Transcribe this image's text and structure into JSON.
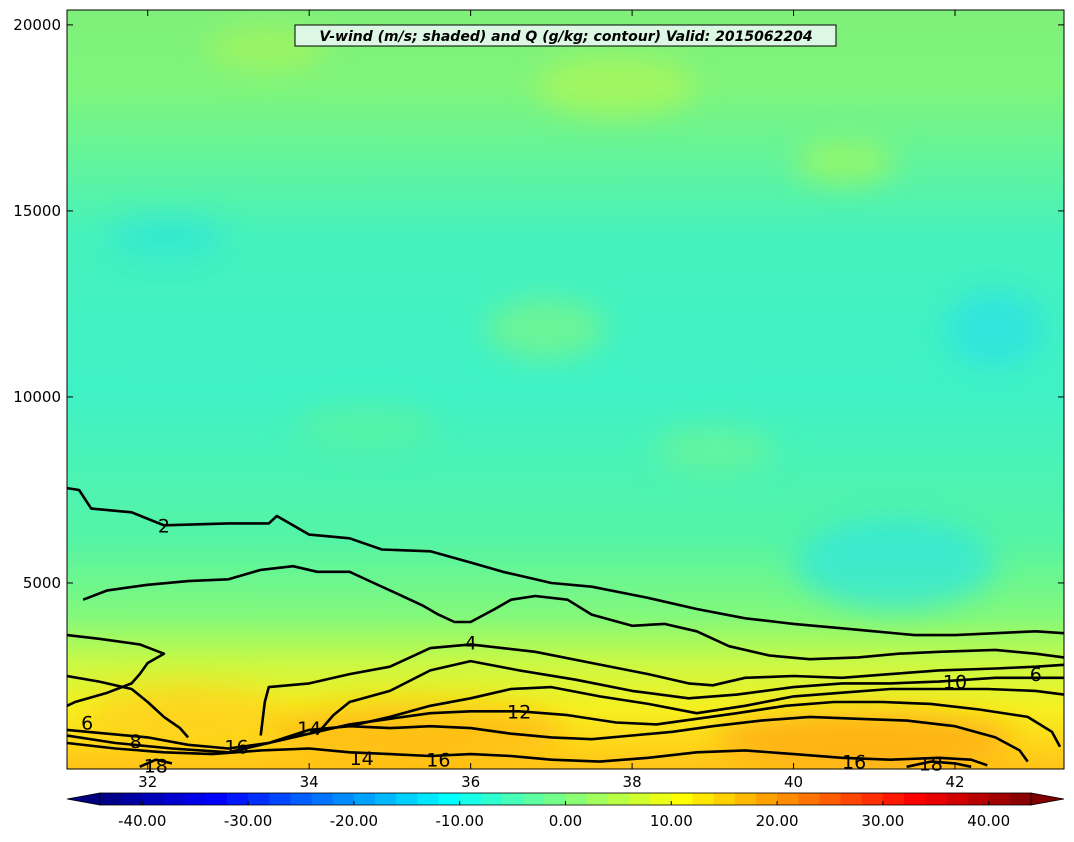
{
  "chart_data": {
    "type": "heatmap",
    "title": "V-wind (m/s; shaded) and Q (g/kg; contour) Valid: 2015062204",
    "xlabel": "",
    "ylabel": "",
    "xlim": [
      31.0,
      43.35
    ],
    "ylim": [
      0,
      20400
    ],
    "x_ticks": [
      32,
      34,
      36,
      38,
      40,
      42
    ],
    "x_tick_labels": [
      "32",
      "34",
      "36",
      "38",
      "40",
      "42"
    ],
    "y_ticks": [
      5000,
      10000,
      15000,
      20000
    ],
    "y_tick_labels": [
      "5000",
      "10000",
      "15000",
      "20000"
    ],
    "grid": false,
    "shaded_field": {
      "name": "V-wind (m/s)",
      "levels_min": -44,
      "levels_max": 44,
      "typical_range_aloft": [
        -8,
        6
      ],
      "typical_range_near_surface": [
        6,
        20
      ]
    },
    "colorbar": {
      "orientation": "horizontal",
      "position": "bottom",
      "range": [
        -44,
        44
      ],
      "ticks": [
        -40,
        -30,
        -20,
        -10,
        0,
        10,
        20,
        30,
        40
      ],
      "tick_labels": [
        "-40.00",
        "-30.00",
        "-20.00",
        "-10.00",
        "0.00",
        "10.00",
        "20.00",
        "30.00",
        "40.00"
      ]
    },
    "contours": {
      "field": "Q (g/kg)",
      "levels": [
        2,
        4,
        6,
        8,
        10,
        12,
        14,
        16,
        18
      ],
      "labels": [
        {
          "text": "2",
          "x": 32.2,
          "y": 6550
        },
        {
          "text": "4",
          "x": 36.0,
          "y": 3400
        },
        {
          "text": "6",
          "x": 43.0,
          "y": 2550
        },
        {
          "text": "10",
          "x": 42.0,
          "y": 2350
        },
        {
          "text": "12",
          "x": 36.6,
          "y": 1550
        },
        {
          "text": "14",
          "x": 34.0,
          "y": 1100
        },
        {
          "text": "6",
          "x": 31.25,
          "y": 1250
        },
        {
          "text": "8",
          "x": 31.85,
          "y": 750
        },
        {
          "text": "16",
          "x": 33.1,
          "y": 600
        },
        {
          "text": "14",
          "x": 34.65,
          "y": 300
        },
        {
          "text": "16",
          "x": 35.6,
          "y": 250
        },
        {
          "text": "16",
          "x": 40.75,
          "y": 200
        },
        {
          "text": "18",
          "x": 41.7,
          "y": 150
        },
        {
          "text": "18",
          "x": 32.1,
          "y": 100
        }
      ],
      "lines": [
        {
          "level": 2,
          "points": [
            [
              31.0,
              7550
            ],
            [
              31.15,
              7500
            ],
            [
              31.3,
              7000
            ],
            [
              31.8,
              6900
            ],
            [
              32.2,
              6550
            ],
            [
              33.0,
              6600
            ],
            [
              33.5,
              6600
            ],
            [
              33.6,
              6800
            ],
            [
              34.0,
              6300
            ],
            [
              34.5,
              6200
            ],
            [
              34.9,
              5900
            ],
            [
              35.5,
              5850
            ],
            [
              36.0,
              5550
            ],
            [
              36.4,
              5300
            ],
            [
              36.6,
              5200
            ],
            [
              37.0,
              5000
            ],
            [
              37.5,
              4900
            ],
            [
              38.2,
              4600
            ],
            [
              38.8,
              4300
            ],
            [
              39.4,
              4050
            ],
            [
              40.0,
              3900
            ],
            [
              40.5,
              3800
            ],
            [
              41.0,
              3700
            ],
            [
              41.5,
              3600
            ],
            [
              42.0,
              3600
            ],
            [
              42.5,
              3650
            ],
            [
              43.0,
              3700
            ],
            [
              43.35,
              3650
            ]
          ]
        },
        {
          "level": 4,
          "points": [
            [
              31.2,
              4550
            ],
            [
              31.5,
              4800
            ],
            [
              32.0,
              4950
            ],
            [
              32.5,
              5050
            ],
            [
              33.0,
              5100
            ],
            [
              33.4,
              5350
            ],
            [
              33.8,
              5450
            ],
            [
              34.1,
              5300
            ],
            [
              34.5,
              5300
            ],
            [
              34.8,
              5000
            ],
            [
              35.1,
              4700
            ],
            [
              35.4,
              4400
            ],
            [
              35.6,
              4150
            ],
            [
              35.8,
              3950
            ],
            [
              36.0,
              3950
            ],
            [
              36.3,
              4300
            ],
            [
              36.5,
              4550
            ],
            [
              36.8,
              4650
            ],
            [
              37.2,
              4550
            ],
            [
              37.5,
              4150
            ],
            [
              38.0,
              3850
            ],
            [
              38.4,
              3900
            ],
            [
              38.8,
              3700
            ],
            [
              39.2,
              3300
            ],
            [
              39.7,
              3050
            ],
            [
              40.2,
              2950
            ],
            [
              40.8,
              3000
            ],
            [
              41.3,
              3100
            ],
            [
              41.8,
              3150
            ],
            [
              42.5,
              3200
            ],
            [
              43.0,
              3100
            ],
            [
              43.35,
              3000
            ]
          ]
        },
        {
          "level": 6,
          "points": [
            [
              31.0,
              3600
            ],
            [
              31.4,
              3500
            ],
            [
              31.9,
              3350
            ],
            [
              32.2,
              3100
            ],
            [
              32.0,
              2850
            ],
            [
              31.9,
              2550
            ],
            [
              31.8,
              2300
            ],
            [
              31.5,
              2050
            ],
            [
              31.1,
              1800
            ],
            [
              31.0,
              1700
            ]
          ]
        },
        {
          "level": 6,
          "points": [
            [
              33.4,
              900
            ],
            [
              33.45,
              1800
            ],
            [
              33.5,
              2200
            ],
            [
              34.0,
              2300
            ],
            [
              34.5,
              2550
            ],
            [
              35.0,
              2750
            ],
            [
              35.5,
              3250
            ],
            [
              36.0,
              3350
            ],
            [
              36.8,
              3150
            ],
            [
              37.5,
              2850
            ],
            [
              38.2,
              2550
            ],
            [
              38.7,
              2300
            ],
            [
              39.0,
              2250
            ],
            [
              39.4,
              2450
            ],
            [
              40.0,
              2500
            ],
            [
              40.6,
              2450
            ],
            [
              41.2,
              2550
            ],
            [
              41.8,
              2650
            ],
            [
              42.5,
              2700
            ],
            [
              43.0,
              2750
            ],
            [
              43.35,
              2800
            ]
          ]
        },
        {
          "level": 8,
          "points": [
            [
              31.0,
              2500
            ],
            [
              31.4,
              2350
            ],
            [
              31.8,
              2150
            ],
            [
              32.0,
              1800
            ],
            [
              32.2,
              1400
            ],
            [
              32.4,
              1100
            ],
            [
              32.5,
              850
            ]
          ]
        },
        {
          "level": 8,
          "points": [
            [
              34.1,
              950
            ],
            [
              34.3,
              1450
            ],
            [
              34.5,
              1800
            ],
            [
              35.0,
              2100
            ],
            [
              35.5,
              2650
            ],
            [
              36.0,
              2900
            ],
            [
              36.6,
              2650
            ],
            [
              37.3,
              2400
            ],
            [
              38.0,
              2100
            ],
            [
              38.7,
              1900
            ],
            [
              39.3,
              2000
            ],
            [
              40.0,
              2200
            ],
            [
              40.6,
              2300
            ],
            [
              41.2,
              2300
            ],
            [
              41.8,
              2350
            ],
            [
              42.5,
              2450
            ],
            [
              43.35,
              2450
            ]
          ]
        },
        {
          "level": 10,
          "points": [
            [
              34.5,
              1150
            ],
            [
              35.0,
              1400
            ],
            [
              35.5,
              1700
            ],
            [
              36.0,
              1900
            ],
            [
              36.5,
              2150
            ],
            [
              37.0,
              2200
            ],
            [
              37.6,
              1950
            ],
            [
              38.2,
              1750
            ],
            [
              38.8,
              1500
            ],
            [
              39.4,
              1700
            ],
            [
              40.0,
              1950
            ],
            [
              40.6,
              2050
            ],
            [
              41.2,
              2150
            ],
            [
              41.8,
              2150
            ],
            [
              42.4,
              2150
            ],
            [
              43.0,
              2100
            ],
            [
              43.35,
              2000
            ]
          ]
        },
        {
          "level": 12,
          "points": [
            [
              31.0,
              1050
            ],
            [
              31.5,
              950
            ],
            [
              32.0,
              850
            ],
            [
              32.5,
              650
            ],
            [
              33.0,
              550
            ],
            [
              33.5,
              700
            ],
            [
              34.0,
              950
            ],
            [
              34.5,
              1200
            ],
            [
              35.0,
              1350
            ],
            [
              35.5,
              1500
            ],
            [
              36.0,
              1550
            ],
            [
              36.6,
              1550
            ],
            [
              37.2,
              1450
            ],
            [
              37.8,
              1250
            ],
            [
              38.3,
              1200
            ],
            [
              38.8,
              1350
            ],
            [
              39.3,
              1500
            ],
            [
              39.9,
              1700
            ],
            [
              40.5,
              1800
            ],
            [
              41.1,
              1800
            ],
            [
              41.7,
              1750
            ],
            [
              42.3,
              1600
            ],
            [
              42.9,
              1400
            ],
            [
              43.2,
              1000
            ],
            [
              43.3,
              600
            ]
          ]
        },
        {
          "level": 14,
          "points": [
            [
              31.0,
              900
            ],
            [
              31.6,
              700
            ],
            [
              32.3,
              550
            ],
            [
              33.0,
              450
            ],
            [
              33.5,
              700
            ],
            [
              34.0,
              1050
            ],
            [
              34.5,
              1150
            ],
            [
              35.0,
              1100
            ],
            [
              35.5,
              1150
            ],
            [
              36.0,
              1100
            ],
            [
              36.5,
              950
            ],
            [
              37.0,
              850
            ],
            [
              37.5,
              800
            ],
            [
              38.0,
              900
            ],
            [
              38.5,
              1000
            ],
            [
              39.0,
              1150
            ],
            [
              39.6,
              1300
            ],
            [
              40.2,
              1400
            ],
            [
              40.8,
              1350
            ],
            [
              41.4,
              1300
            ],
            [
              42.0,
              1150
            ],
            [
              42.5,
              850
            ],
            [
              42.8,
              500
            ],
            [
              42.9,
              200
            ]
          ]
        },
        {
          "level": 16,
          "points": [
            [
              31.0,
              700
            ],
            [
              31.6,
              550
            ],
            [
              32.2,
              450
            ],
            [
              32.8,
              400
            ],
            [
              33.4,
              500
            ],
            [
              34.0,
              550
            ],
            [
              34.5,
              450
            ],
            [
              35.0,
              400
            ],
            [
              35.5,
              350
            ],
            [
              36.0,
              400
            ],
            [
              36.5,
              350
            ],
            [
              37.0,
              250
            ],
            [
              37.6,
              200
            ],
            [
              38.2,
              300
            ],
            [
              38.8,
              450
            ],
            [
              39.4,
              500
            ],
            [
              40.0,
              400
            ],
            [
              40.6,
              300
            ],
            [
              41.2,
              250
            ],
            [
              41.8,
              300
            ],
            [
              42.2,
              250
            ],
            [
              42.4,
              100
            ]
          ]
        },
        {
          "level": 18,
          "points": [
            [
              31.9,
              60
            ],
            [
              32.1,
              250
            ],
            [
              32.3,
              150
            ]
          ]
        },
        {
          "level": 18,
          "points": [
            [
              41.4,
              60
            ],
            [
              41.7,
              200
            ],
            [
              42.0,
              150
            ],
            [
              42.2,
              60
            ]
          ]
        }
      ]
    }
  }
}
